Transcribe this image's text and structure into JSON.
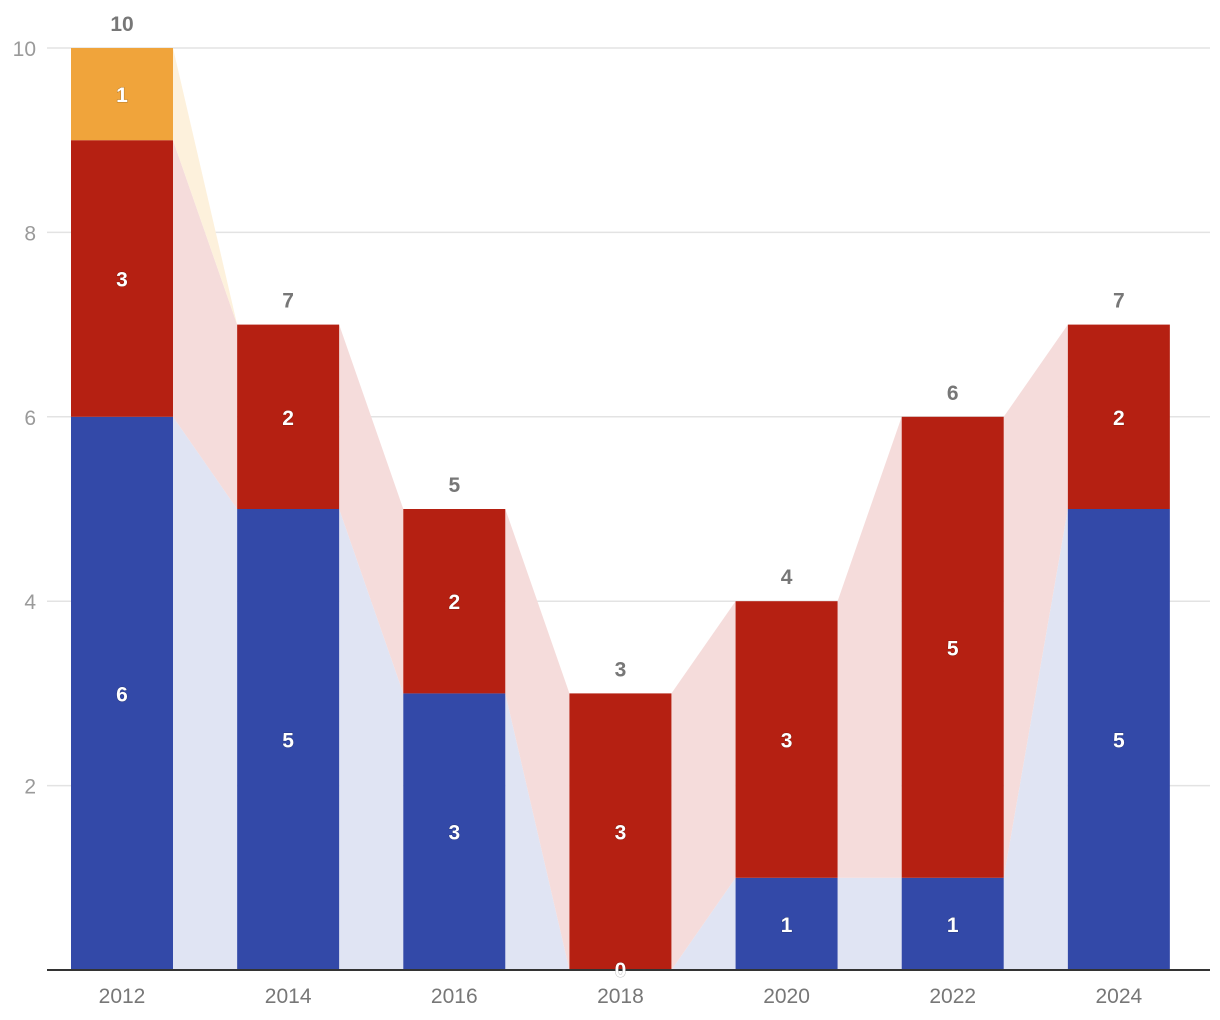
{
  "chart_data": {
    "type": "bar",
    "stacked": true,
    "categories": [
      "2012",
      "2014",
      "2016",
      "2018",
      "2020",
      "2022",
      "2024"
    ],
    "series": [
      {
        "name": "Blue",
        "color": "#3349a8",
        "band_color": "#e0e4f3",
        "values": [
          6,
          5,
          3,
          0,
          1,
          1,
          5
        ]
      },
      {
        "name": "Red",
        "color": "#b52012",
        "band_color": "#f5dcdb",
        "values": [
          3,
          2,
          2,
          3,
          3,
          5,
          2
        ]
      },
      {
        "name": "Orange",
        "color": "#f0a43b",
        "band_color": "#fdf1dc",
        "values": [
          1,
          0,
          0,
          0,
          0,
          0,
          0
        ]
      }
    ],
    "totals": [
      10,
      7,
      5,
      3,
      4,
      6,
      7
    ],
    "y_ticks": [
      2,
      4,
      6,
      8,
      10
    ],
    "ylim": [
      0,
      10
    ],
    "grid": true,
    "title": "",
    "xlabel": "",
    "ylabel": ""
  }
}
